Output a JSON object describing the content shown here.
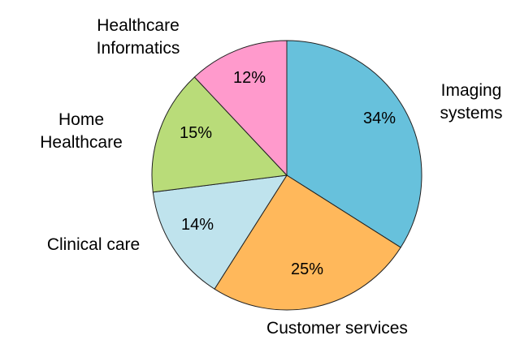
{
  "chart_data": {
    "type": "pie",
    "categories": [
      "Imaging\nsystems",
      "Customer services",
      "Clinical care",
      "Home\nHealthcare",
      "Healthcare\nInformatics"
    ],
    "values": [
      34,
      25,
      14,
      15,
      12
    ],
    "value_labels": [
      "34%",
      "25%",
      "14%",
      "15%",
      "12%"
    ],
    "colors": [
      "#67c1dc",
      "#ffb85b",
      "#bfe3ed",
      "#b9dc79",
      "#ff9acc"
    ]
  }
}
